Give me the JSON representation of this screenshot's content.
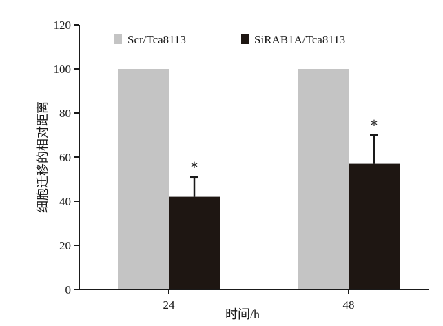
{
  "chart_data": {
    "type": "bar",
    "categories": [
      "24",
      "48"
    ],
    "series": [
      {
        "name": "Scr/Tca8113",
        "values": [
          100,
          100
        ],
        "errors": [
          0,
          0
        ],
        "color": "#c4c4c4",
        "significance": [
          "",
          ""
        ]
      },
      {
        "name": "SiRAB1A/Tca8113",
        "values": [
          42,
          57
        ],
        "errors": [
          9,
          13
        ],
        "color": "#1e1612",
        "significance": [
          "*",
          "*"
        ]
      }
    ],
    "xlabel": "时间/h",
    "ylabel": "细胞迁移的相对距离",
    "ylim": [
      0,
      120
    ],
    "yticks": [
      0,
      20,
      40,
      60,
      80,
      100,
      120
    ],
    "legend": "top",
    "grid": false
  }
}
